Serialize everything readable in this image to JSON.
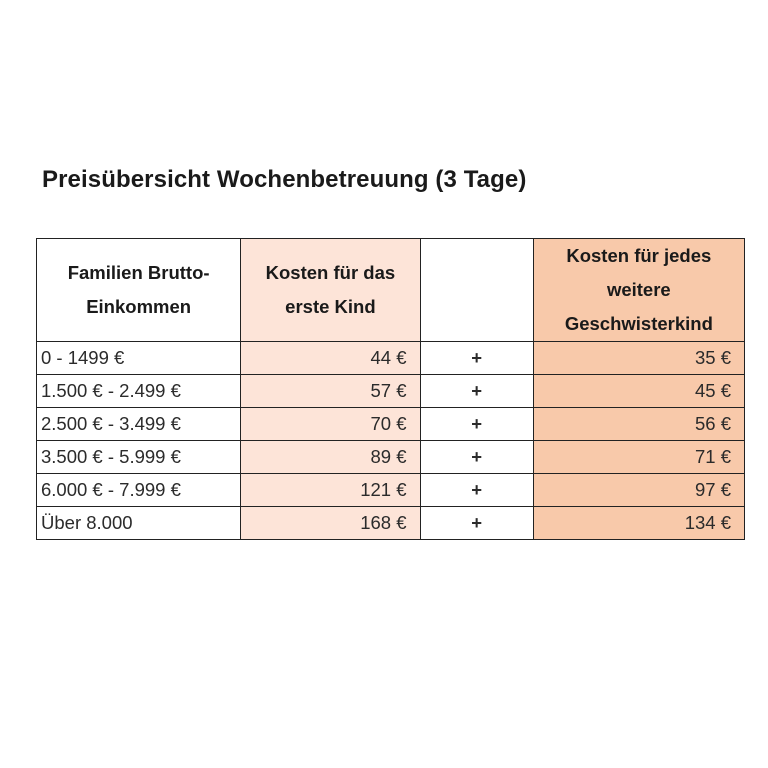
{
  "title": "Preisübersicht Wochenbetreuung (3 Tage)",
  "table": {
    "headers": {
      "income": "Familien Brutto-Einkommen",
      "income_line1": "Familien Brutto-",
      "income_line2": "Einkommen",
      "first_child": "Kosten für das erste Kind",
      "first_child_line1": "Kosten für das",
      "first_child_line2": "erste Kind",
      "operator": "",
      "sibling": "Kosten für jedes weitere Geschwisterkind",
      "sibling_line1": "Kosten für jedes",
      "sibling_line2": "weitere",
      "sibling_line3": "Geschwisterkind"
    },
    "rows": [
      {
        "income": "0 - 1499 €",
        "first_child": "44 €",
        "operator": "+",
        "sibling": "35 €"
      },
      {
        "income": "1.500 € - 2.499 €",
        "first_child": "57 €",
        "operator": "+",
        "sibling": "45 €"
      },
      {
        "income": "2.500 € - 3.499 €",
        "first_child": "70 €",
        "operator": "+",
        "sibling": "56 €"
      },
      {
        "income": "3.500 € - 5.999 €",
        "first_child": "89 €",
        "operator": "+",
        "sibling": "71 €"
      },
      {
        "income": "6.000 € - 7.999 €",
        "first_child": "121 €",
        "operator": "+",
        "sibling": "97 €"
      },
      {
        "income": "Über 8.000",
        "first_child": "168 €",
        "operator": "+",
        "sibling": "134 €"
      }
    ]
  },
  "colors": {
    "first_child_fill": "#fde4d8",
    "sibling_fill": "#f8c9aa",
    "border": "#222222",
    "text": "#1a1a1a"
  }
}
